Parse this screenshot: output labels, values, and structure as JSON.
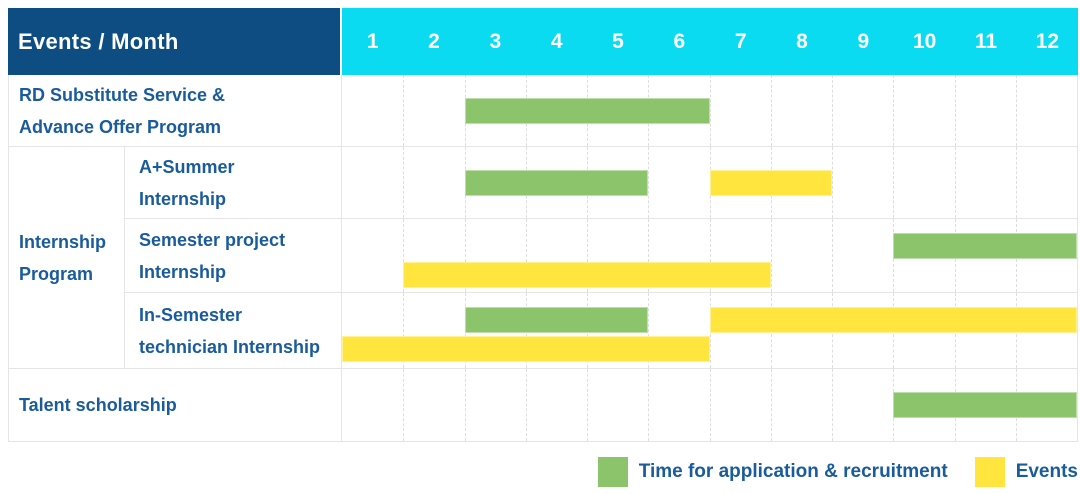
{
  "colors": {
    "header_bg": "#0d4d82",
    "months_bg": "#0bdbf0",
    "green": "#8bc46a",
    "yellow": "#ffe53e",
    "label_blue": "#1a5b9c",
    "grid_line": "#dedede",
    "row_border": "#e5e5e5"
  },
  "header": {
    "title": "Events / Month",
    "months": [
      "1",
      "2",
      "3",
      "4",
      "5",
      "6",
      "7",
      "8",
      "9",
      "10",
      "11",
      "12"
    ]
  },
  "chart_data": {
    "type": "gantt",
    "title": "Events / Month",
    "x_axis": {
      "label": "Month",
      "range": [
        1,
        12
      ]
    },
    "legend": [
      {
        "color_key": "green",
        "label": "Time for application & recruitment"
      },
      {
        "color_key": "yellow",
        "label": "Events"
      }
    ],
    "rows": [
      {
        "group": null,
        "label": "RD Substitute Service &\nAdvance Offer Program",
        "tracks": [
          [
            {
              "color": "green",
              "start": 3,
              "end": 6
            }
          ]
        ]
      },
      {
        "group": "Internship\nProgram",
        "label": "A+Summer\nInternship",
        "tracks": [
          [
            {
              "color": "green",
              "start": 3,
              "end": 5
            },
            {
              "color": "yellow",
              "start": 7,
              "end": 8
            }
          ]
        ]
      },
      {
        "group": "Internship\nProgram",
        "label": "Semester project\nInternship",
        "tracks": [
          [
            {
              "color": "green",
              "start": 10,
              "end": 12
            }
          ],
          [
            {
              "color": "yellow",
              "start": 2,
              "end": 7
            }
          ]
        ]
      },
      {
        "group": "Internship\nProgram",
        "label": "In-Semester\ntechnician Internship",
        "tracks": [
          [
            {
              "color": "green",
              "start": 3,
              "end": 5
            },
            {
              "color": "yellow",
              "start": 7,
              "end": 12
            }
          ],
          [
            {
              "color": "yellow",
              "start": 1,
              "end": 6
            }
          ]
        ]
      },
      {
        "group": null,
        "label": "Talent scholarship",
        "tracks": [
          [
            {
              "color": "green",
              "start": 10,
              "end": 12
            }
          ]
        ]
      }
    ]
  }
}
